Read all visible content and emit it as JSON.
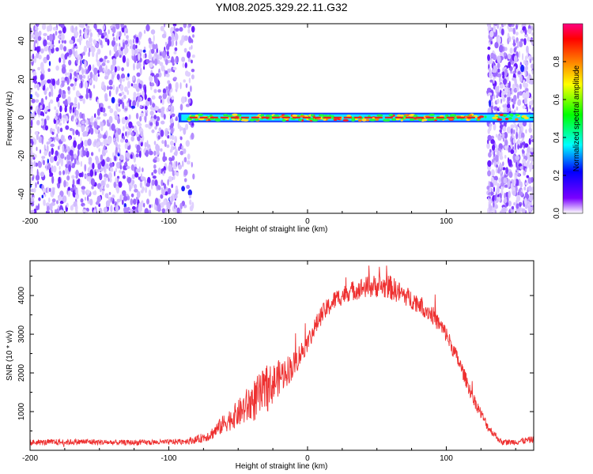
{
  "title": "YM08.2025.329.22.11.G32",
  "chart_data": [
    {
      "type": "heatmap",
      "xlabel": "Height of straight line (km)",
      "ylabel": "Frequency (Hz)",
      "xlim": [
        -200,
        163
      ],
      "ylim": [
        -50,
        49
      ],
      "xticks": [
        -200,
        -100,
        0,
        100
      ],
      "yticks": [
        -40,
        -20,
        0,
        20,
        40
      ],
      "noise_regions": [
        [
          -200,
          -82
        ],
        [
          130,
          163
        ]
      ],
      "signal_band": {
        "x_range": [
          -93,
          163
        ],
        "center_freq": 0,
        "half_width": 2.5
      },
      "colorbar": {
        "label": "Normalized spectral amplitude",
        "range": [
          0,
          1
        ],
        "ticks": [
          "0.0",
          "0.2",
          "0.4",
          "0.6",
          "0.8"
        ],
        "tick_values": [
          0.0,
          0.2,
          0.4,
          0.6,
          0.8
        ],
        "colors": [
          "#ffffff",
          "#7a00ff",
          "#0000ff",
          "#00ffff",
          "#00ff00",
          "#ffff00",
          "#ff8000",
          "#ff0000",
          "#ff0080"
        ]
      }
    },
    {
      "type": "line",
      "xlabel": "Height of straight line (km)",
      "ylabel": "SNR (10 * v/v)",
      "xlim": [
        -200,
        163
      ],
      "ylim": [
        0,
        4900
      ],
      "xticks": [
        -200,
        -100,
        0,
        100
      ],
      "yticks": [
        1000,
        2000,
        3000,
        4000
      ],
      "color": "#ee3030",
      "series": [
        {
          "name": "SNR",
          "x": [
            -200,
            -180,
            -160,
            -140,
            -120,
            -100,
            -90,
            -80,
            -70,
            -60,
            -50,
            -40,
            -30,
            -20,
            -10,
            0,
            10,
            20,
            30,
            40,
            50,
            60,
            70,
            80,
            90,
            100,
            110,
            120,
            130,
            140,
            150,
            163
          ],
          "values": [
            200,
            210,
            220,
            200,
            200,
            210,
            230,
            270,
            400,
            700,
            950,
            1250,
            1550,
            1900,
            2200,
            2800,
            3500,
            3900,
            4100,
            4200,
            4250,
            4200,
            4000,
            3800,
            3500,
            3000,
            2200,
            1300,
            600,
            200,
            220,
            280
          ],
          "noise": [
            70,
            80,
            80,
            70,
            70,
            70,
            80,
            100,
            150,
            250,
            350,
            550,
            600,
            450,
            350,
            250,
            250,
            250,
            250,
            280,
            300,
            320,
            260,
            250,
            240,
            220,
            200,
            170,
            120,
            70,
            80,
            90
          ]
        }
      ]
    }
  ]
}
